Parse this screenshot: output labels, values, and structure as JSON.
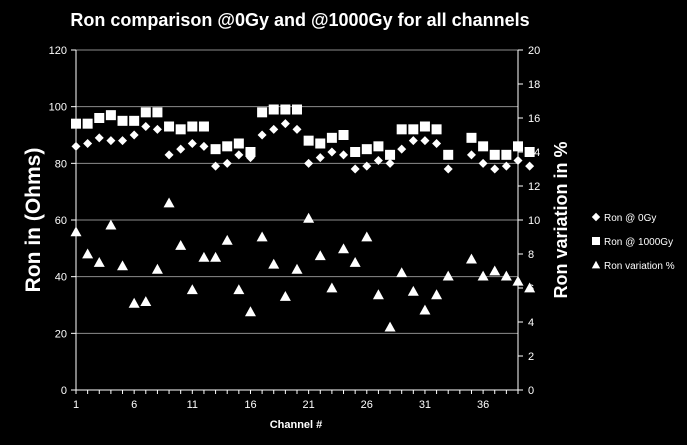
{
  "chart_data": {
    "type": "scatter",
    "title": "Ron comparison @0Gy and @1000Gy for all channels",
    "xlabel": "Channel #",
    "ylabel": "Ron in (Ohms)",
    "y2label": "Ron variation in %",
    "xlim": [
      1,
      39
    ],
    "ylim": [
      0,
      120
    ],
    "y2lim": [
      0,
      20
    ],
    "xticks": [
      "1",
      "6",
      "11",
      "16",
      "21",
      "26",
      "31",
      "36"
    ],
    "yticks": [
      "0",
      "20",
      "40",
      "60",
      "80",
      "100",
      "120"
    ],
    "y2ticks": [
      "0",
      "2",
      "4",
      "6",
      "8",
      "10",
      "12",
      "14",
      "16",
      "18",
      "20"
    ],
    "grid": "horizontal",
    "legend_position": "right",
    "colors": {
      "background": "#000000",
      "foreground": "#ffffff"
    },
    "series": [
      {
        "name": "Ron @ 0Gy",
        "marker": "diamond",
        "axis": "left",
        "x": [
          1,
          2,
          3,
          4,
          5,
          6,
          7,
          8,
          9,
          10,
          11,
          12,
          13,
          14,
          15,
          16,
          17,
          18,
          19,
          20,
          21,
          22,
          23,
          24,
          25,
          26,
          27,
          28,
          29,
          30,
          31,
          32,
          33,
          35,
          36,
          37,
          38,
          39,
          40
        ],
        "values": [
          86,
          87,
          89,
          88,
          88,
          90,
          93,
          92,
          83,
          85,
          87,
          86,
          79,
          80,
          83,
          82,
          90,
          92,
          94,
          92,
          80,
          82,
          84,
          83,
          78,
          79,
          81,
          80,
          85,
          88,
          88,
          87,
          78,
          83,
          80,
          78,
          79,
          81,
          79
        ]
      },
      {
        "name": "Ron @ 1000Gy",
        "marker": "square",
        "axis": "left",
        "x": [
          1,
          2,
          3,
          4,
          5,
          6,
          7,
          8,
          9,
          10,
          11,
          12,
          13,
          14,
          15,
          16,
          17,
          18,
          19,
          20,
          21,
          22,
          23,
          24,
          25,
          26,
          27,
          28,
          29,
          30,
          31,
          32,
          33,
          35,
          36,
          37,
          38,
          39,
          40
        ],
        "values": [
          94,
          94,
          96,
          97,
          95,
          95,
          98,
          98,
          93,
          92,
          93,
          93,
          85,
          86,
          87,
          84,
          98,
          99,
          99,
          99,
          88,
          87,
          89,
          90,
          84,
          85,
          86,
          83,
          92,
          92,
          93,
          92,
          83,
          89,
          86,
          83,
          83,
          86,
          84
        ]
      },
      {
        "name": "Ron variation %",
        "marker": "triangle",
        "axis": "right",
        "x": [
          1,
          2,
          3,
          4,
          5,
          6,
          7,
          8,
          9,
          10,
          11,
          12,
          13,
          14,
          15,
          16,
          17,
          18,
          19,
          20,
          21,
          22,
          23,
          24,
          25,
          26,
          27,
          28,
          29,
          30,
          31,
          32,
          33,
          35,
          36,
          37,
          38,
          39,
          40
        ],
        "values": [
          9.3,
          8.0,
          7.5,
          9.7,
          7.3,
          5.1,
          5.2,
          7.1,
          11.0,
          8.5,
          5.9,
          7.8,
          7.8,
          8.8,
          5.9,
          4.6,
          9.0,
          7.4,
          5.5,
          7.1,
          10.1,
          7.9,
          6.0,
          8.3,
          7.5,
          9.0,
          5.6,
          3.7,
          6.9,
          5.8,
          4.7,
          5.6,
          6.7,
          7.7,
          6.7,
          7.0,
          6.7,
          6.4,
          6.0
        ]
      }
    ]
  }
}
